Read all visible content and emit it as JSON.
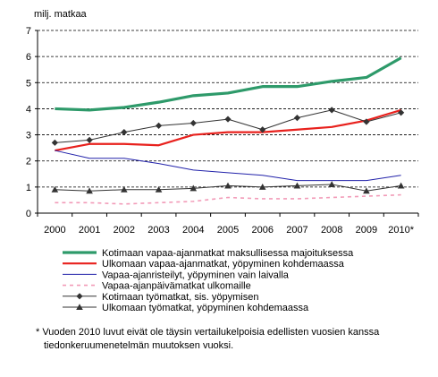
{
  "chart_data": {
    "type": "line",
    "ylabel": "milj. matkaa",
    "ylim": [
      0,
      7
    ],
    "yticks": [
      0,
      1,
      2,
      3,
      4,
      5,
      6,
      7
    ],
    "grid": true,
    "legend_position": "bottom",
    "categories": [
      "2000",
      "2001",
      "2002",
      "2003",
      "2004",
      "2005",
      "2006",
      "2007",
      "2008",
      "2009",
      "2010*"
    ],
    "series": [
      {
        "name": "Kotimaan vapaa-ajanmatkat maksullisessa majoituksessa",
        "color": "#2e9a6a",
        "style": "thick",
        "marker": "none",
        "values": [
          4.0,
          3.95,
          4.05,
          4.25,
          4.5,
          4.6,
          4.85,
          4.85,
          5.05,
          5.2,
          5.95
        ]
      },
      {
        "name": "Ulkomaan vapaa-ajanmatkat, yöpyminen kohdemaassa",
        "color": "#e8211d",
        "style": "medium",
        "marker": "none",
        "values": [
          2.4,
          2.65,
          2.65,
          2.6,
          3.0,
          3.1,
          3.1,
          3.2,
          3.3,
          3.55,
          3.95
        ]
      },
      {
        "name": "Vapaa-ajanristeilyt, yöpyminen vain laivalla",
        "color": "#2222aa",
        "style": "thin",
        "marker": "none",
        "values": [
          2.4,
          2.1,
          2.1,
          1.9,
          1.65,
          1.55,
          1.45,
          1.25,
          1.25,
          1.25,
          1.45
        ]
      },
      {
        "name": "Vapaa-ajanpäivämatkat ulkomaille",
        "color": "#f29bb8",
        "style": "dashed",
        "marker": "none",
        "values": [
          0.4,
          0.4,
          0.35,
          0.4,
          0.45,
          0.6,
          0.55,
          0.55,
          0.6,
          0.65,
          0.7
        ]
      },
      {
        "name": "Kotimaan työmatkat, sis. yöpymisen",
        "color": "#333333",
        "style": "thin",
        "marker": "diamond",
        "values": [
          2.7,
          2.8,
          3.1,
          3.35,
          3.45,
          3.6,
          3.2,
          3.65,
          3.95,
          3.5,
          3.85
        ]
      },
      {
        "name": "Ulkomaan työmatkat, yöpyminen kohdemaassa",
        "color": "#333333",
        "style": "thin",
        "marker": "triangle",
        "values": [
          0.9,
          0.85,
          0.9,
          0.9,
          0.95,
          1.05,
          1.0,
          1.05,
          1.1,
          0.85,
          1.05
        ]
      }
    ]
  },
  "footnote": {
    "line1": "* Vuoden 2010 luvut eivät ole täysin vertailukelpoisia edellisten vuosien kanssa",
    "line2": "tiedonkeruumenetelmän muutoksen vuoksi."
  }
}
